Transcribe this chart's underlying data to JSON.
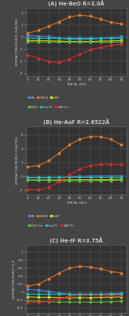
{
  "theta": [
    0,
    10,
    20,
    30,
    40,
    50,
    60,
    70,
    80,
    90
  ],
  "panels": [
    {
      "title": "(A) He-BeO R=3.0Å",
      "ylabel": "INTERACTION ENERGY, KCAL/MOL",
      "xlabel": "THETA, DEG",
      "ylim": [
        -3.2,
        2.4
      ],
      "yticks": [
        -3.0,
        -2.0,
        -1.0,
        0.0,
        1.0,
        2.0
      ],
      "legend_order": [
        "ES",
        "EXCH",
        "dHF",
        "DISP",
        "Ind-PT",
        "SAPT2+"
      ],
      "series": {
        "ES": [
          0.12,
          0.08,
          0.02,
          -0.1,
          -0.18,
          -0.2,
          -0.18,
          -0.12,
          -0.05,
          0.02
        ],
        "EXCH": [
          0.3,
          0.55,
          0.88,
          1.25,
          1.65,
          1.8,
          1.72,
          1.48,
          1.22,
          1.08
        ],
        "dHF": [
          -0.3,
          -0.3,
          -0.32,
          -0.35,
          -0.38,
          -0.38,
          -0.38,
          -0.35,
          -0.33,
          -0.3
        ],
        "DISP": [
          -0.4,
          -0.42,
          -0.43,
          -0.43,
          -0.43,
          -0.43,
          -0.43,
          -0.43,
          -0.43,
          -0.42
        ],
        "Ind-PT": [
          -0.05,
          -0.05,
          -0.05,
          -0.05,
          -0.05,
          -0.05,
          -0.05,
          -0.05,
          -0.05,
          -0.05
        ],
        "SAPT2+": [
          -1.5,
          -1.75,
          -2.05,
          -2.12,
          -1.82,
          -1.42,
          -1.08,
          -0.85,
          -0.7,
          -0.58
        ]
      }
    },
    {
      "title": "(B) He-AuF R=2.6522Å",
      "ylabel": "INTERACTION ENERGY, KCAL/MOL",
      "xlabel": "THETA, DEG",
      "ylim": [
        -2.6,
        7.2
      ],
      "yticks": [
        -2.0,
        0.0,
        2.0,
        4.0,
        6.0
      ],
      "legend_order": [
        "ES",
        "EXCH",
        "dHF",
        "DISP-tot",
        "Ind-PT",
        "SAPT2+"
      ],
      "series": {
        "ES": [
          -0.22,
          -0.22,
          -0.2,
          -0.15,
          -0.08,
          -0.02,
          0.03,
          0.05,
          0.05,
          0.05
        ],
        "EXCH": [
          1.35,
          1.55,
          2.25,
          3.35,
          4.55,
          5.35,
          5.75,
          5.72,
          5.35,
          4.55
        ],
        "dHF": [
          -0.55,
          -0.55,
          -0.55,
          -0.55,
          -0.52,
          -0.5,
          -0.5,
          -0.5,
          -0.48,
          -0.45
        ],
        "DISP-tot": [
          -0.58,
          -0.6,
          -0.62,
          -0.68,
          -0.68,
          -0.68,
          -0.68,
          -0.62,
          -0.62,
          -0.58
        ],
        "Ind-PT": [
          -0.12,
          -0.12,
          -0.12,
          -0.12,
          -0.12,
          -0.12,
          -0.12,
          -0.12,
          -0.12,
          -0.12
        ],
        "SAPT2+": [
          -1.88,
          -1.92,
          -1.62,
          -0.82,
          0.22,
          1.05,
          1.55,
          1.72,
          1.72,
          1.68
        ]
      }
    },
    {
      "title": "(C) He-IF R=3.75Å",
      "ylabel": "INTERACTION ENERGY, K_H",
      "xlabel": "THETA, DEG",
      "ylim": [
        -0.52,
        1.18
      ],
      "yticks": [
        -0.4,
        -0.2,
        0.0,
        0.2,
        0.4,
        0.6,
        0.8,
        1.0
      ],
      "legend_order": [
        "ES",
        "EXCH",
        "dHF",
        "DISP",
        "SAPT2+",
        "Ind-PT"
      ],
      "series": {
        "ES": [
          0.07,
          0.05,
          0.02,
          -0.02,
          -0.06,
          -0.08,
          -0.07,
          -0.06,
          -0.04,
          -0.02
        ],
        "EXCH": [
          0.15,
          0.2,
          0.33,
          0.48,
          0.6,
          0.65,
          0.63,
          0.58,
          0.52,
          0.48
        ],
        "dHF": [
          -0.12,
          -0.13,
          -0.13,
          -0.14,
          -0.14,
          -0.14,
          -0.14,
          -0.13,
          -0.13,
          -0.12
        ],
        "DISP": [
          -0.22,
          -0.23,
          -0.24,
          -0.25,
          -0.25,
          -0.25,
          -0.25,
          -0.25,
          -0.24,
          -0.23
        ],
        "Ind-PT": [
          -0.05,
          -0.05,
          -0.05,
          -0.05,
          -0.05,
          -0.05,
          -0.05,
          -0.05,
          -0.05,
          -0.05
        ],
        "SAPT2+": [
          -0.26,
          -0.26,
          -0.22,
          -0.17,
          -0.1,
          -0.07,
          -0.07,
          -0.08,
          -0.08,
          -0.08
        ]
      }
    }
  ],
  "colors": {
    "ES": "#5588ee",
    "EXCH": "#e07828",
    "dHF": "#d8d800",
    "DISP": "#60b830",
    "DISP-tot": "#60b830",
    "Ind-PT": "#18c0c0",
    "SAPT2+": "#e02828"
  },
  "markers": {
    "ES": "o",
    "EXCH": "o",
    "dHF": "s",
    "DISP": "s",
    "DISP-tot": "s",
    "Ind-PT": "o",
    "SAPT2+": "o"
  },
  "bg_color": "#454545",
  "plot_bg": "#333333",
  "text_color": "#cccccc",
  "grid_color": "#606060"
}
